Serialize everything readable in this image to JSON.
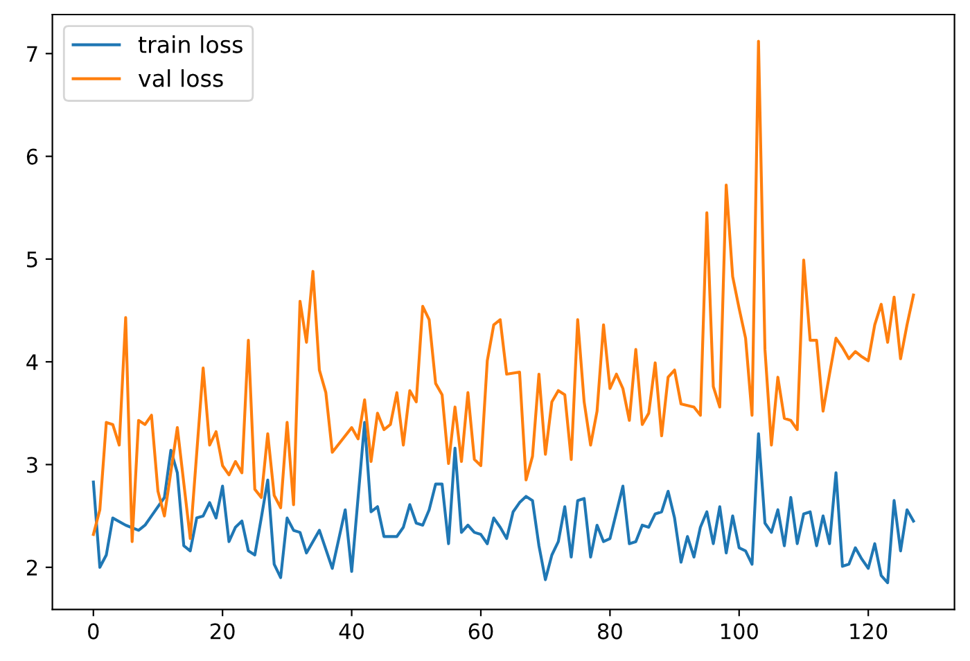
{
  "chart_data": {
    "type": "line",
    "legend": "top left",
    "grid": false,
    "xlim": [
      -6.35,
      133.35
    ],
    "xticks": [
      0,
      20,
      40,
      60,
      80,
      100,
      120
    ],
    "ylim": [
      1.59,
      7.38
    ],
    "yticks": [
      2,
      3,
      4,
      5,
      6,
      7
    ],
    "series": [
      {
        "name": "train loss",
        "color": "#1f77b4",
        "x": [
          0,
          1,
          2,
          3,
          5,
          7,
          8,
          9,
          11,
          12,
          13,
          14,
          15,
          16,
          17,
          18,
          19,
          20,
          21,
          22,
          23,
          24,
          25,
          26,
          27,
          28,
          29,
          30,
          31,
          32,
          33,
          35,
          37,
          39,
          40,
          42,
          43,
          44,
          45,
          47,
          48,
          49,
          50,
          51,
          52,
          53,
          54,
          55,
          56,
          57,
          58,
          59,
          60,
          61,
          62,
          63,
          64,
          65,
          66,
          67,
          68,
          69,
          70,
          71,
          72,
          73,
          74,
          75,
          76,
          77,
          78,
          79,
          80,
          82,
          83,
          84,
          85,
          86,
          87,
          88,
          89,
          90,
          91,
          92,
          93,
          94,
          95,
          96,
          97,
          98,
          99,
          100,
          101,
          102,
          103,
          104,
          105,
          106,
          107,
          108,
          109,
          110,
          111,
          112,
          113,
          114,
          115,
          116,
          117,
          118,
          119,
          120,
          121,
          122,
          123,
          124,
          125,
          126,
          127
        ],
        "values": [
          2.83,
          2.0,
          2.12,
          2.48,
          2.41,
          2.36,
          2.41,
          2.5,
          2.68,
          3.14,
          2.92,
          2.21,
          2.16,
          2.48,
          2.5,
          2.63,
          2.48,
          2.79,
          2.25,
          2.39,
          2.45,
          2.16,
          2.12,
          2.48,
          2.85,
          2.03,
          1.9,
          2.48,
          2.36,
          2.34,
          2.14,
          2.36,
          1.99,
          2.56,
          1.96,
          3.41,
          2.54,
          2.59,
          2.3,
          2.3,
          2.39,
          2.61,
          2.43,
          2.41,
          2.56,
          2.81,
          2.81,
          2.23,
          3.16,
          2.34,
          2.41,
          2.34,
          2.32,
          2.23,
          2.48,
          2.39,
          2.28,
          2.54,
          2.63,
          2.69,
          2.65,
          2.21,
          1.88,
          2.12,
          2.25,
          2.59,
          2.1,
          2.65,
          2.67,
          2.1,
          2.41,
          2.25,
          2.28,
          2.79,
          2.23,
          2.25,
          2.41,
          2.39,
          2.52,
          2.54,
          2.74,
          2.48,
          2.05,
          2.3,
          2.1,
          2.39,
          2.54,
          2.23,
          2.59,
          2.14,
          2.5,
          2.19,
          2.16,
          2.03,
          3.3,
          2.43,
          2.34,
          2.56,
          2.21,
          2.68,
          2.23,
          2.52,
          2.54,
          2.21,
          2.5,
          2.23,
          2.92,
          2.01,
          2.03,
          2.19,
          2.08,
          1.99,
          2.23,
          1.92,
          1.85,
          2.65,
          2.16,
          2.56,
          2.45
        ]
      },
      {
        "name": "val loss",
        "color": "#ff7f0e",
        "x": [
          0,
          1,
          2,
          3,
          4,
          5,
          6,
          7,
          8,
          9,
          10,
          11,
          13,
          15,
          17,
          18,
          19,
          20,
          21,
          22,
          23,
          24,
          25,
          26,
          27,
          28,
          29,
          30,
          31,
          32,
          33,
          34,
          35,
          36,
          37,
          39,
          40,
          41,
          42,
          43,
          44,
          45,
          46,
          47,
          48,
          49,
          50,
          51,
          52,
          53,
          54,
          55,
          56,
          57,
          58,
          59,
          60,
          61,
          62,
          63,
          64,
          66,
          67,
          68,
          69,
          70,
          71,
          72,
          73,
          74,
          75,
          76,
          77,
          78,
          79,
          80,
          81,
          82,
          83,
          84,
          85,
          86,
          87,
          88,
          89,
          90,
          91,
          93,
          94,
          95,
          96,
          97,
          98,
          99,
          100,
          101,
          102,
          103,
          104,
          105,
          106,
          107,
          108,
          109,
          110,
          111,
          112,
          113,
          114,
          115,
          116,
          117,
          118,
          119,
          120,
          121,
          122,
          123,
          124,
          125,
          126,
          127
        ],
        "values": [
          2.32,
          2.56,
          3.41,
          3.39,
          3.19,
          4.43,
          2.25,
          3.43,
          3.39,
          3.48,
          2.74,
          2.5,
          3.36,
          2.28,
          3.94,
          3.19,
          3.32,
          2.99,
          2.9,
          3.03,
          2.92,
          4.21,
          2.76,
          2.68,
          3.3,
          2.7,
          2.58,
          3.41,
          2.61,
          4.59,
          4.19,
          4.88,
          3.92,
          3.7,
          3.12,
          3.28,
          3.36,
          3.25,
          3.63,
          3.03,
          3.5,
          3.34,
          3.39,
          3.7,
          3.19,
          3.72,
          3.61,
          4.54,
          4.41,
          3.79,
          3.68,
          3.01,
          3.56,
          3.03,
          3.7,
          3.05,
          2.99,
          4.01,
          4.36,
          4.41,
          3.88,
          3.9,
          2.85,
          3.08,
          3.88,
          3.1,
          3.61,
          3.72,
          3.68,
          3.05,
          4.41,
          3.61,
          3.19,
          3.52,
          4.36,
          3.74,
          3.88,
          3.74,
          3.43,
          4.12,
          3.39,
          3.5,
          3.99,
          3.28,
          3.85,
          3.92,
          3.59,
          3.56,
          3.48,
          5.45,
          3.76,
          3.56,
          5.72,
          4.83,
          4.52,
          4.23,
          3.48,
          7.12,
          4.12,
          3.19,
          3.85,
          3.45,
          3.43,
          3.34,
          4.99,
          4.21,
          4.21,
          3.52,
          3.88,
          4.23,
          4.14,
          4.03,
          4.1,
          4.05,
          4.01,
          4.36,
          4.56,
          4.19,
          4.63,
          4.03,
          4.36,
          4.65
        ]
      }
    ]
  }
}
